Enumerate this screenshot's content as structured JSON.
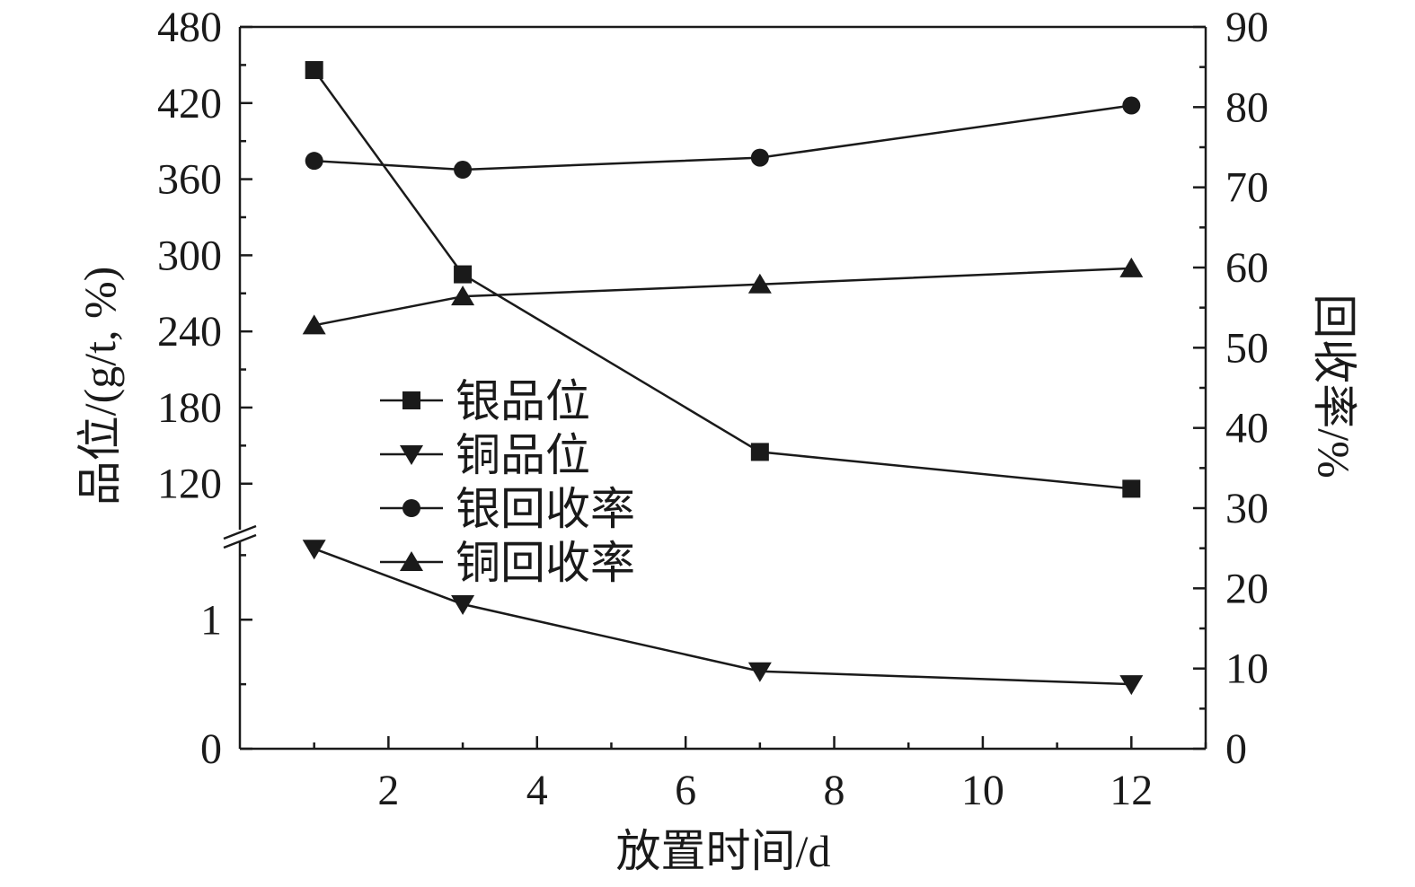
{
  "chart_data": {
    "type": "line",
    "xlabel": "放置时间/d",
    "ylabel_left": "品位/(g/t, %)",
    "ylabel_right": "回收率/%",
    "x_ticks": [
      "2",
      "4",
      "6",
      "8",
      "10",
      "12"
    ],
    "x_tick_values": [
      2,
      4,
      6,
      8,
      10,
      12
    ],
    "xlim": [
      0,
      13
    ],
    "left_axis": {
      "broken": true,
      "upper_segment": {
        "range": [
          100,
          480
        ],
        "ticks": [
          "120",
          "180",
          "240",
          "300",
          "360",
          "420",
          "480"
        ],
        "tick_values": [
          120,
          180,
          240,
          300,
          360,
          420,
          480
        ]
      },
      "lower_segment": {
        "range": [
          0,
          1.6
        ],
        "ticks": [
          "0",
          "1"
        ],
        "tick_values": [
          0,
          1
        ]
      }
    },
    "right_axis": {
      "range": [
        0,
        90
      ],
      "ticks": [
        "0",
        "10",
        "20",
        "30",
        "40",
        "50",
        "60",
        "70",
        "80",
        "90"
      ],
      "tick_values": [
        0,
        10,
        20,
        30,
        40,
        50,
        60,
        70,
        80,
        90
      ]
    },
    "legend_position": "center-left",
    "series": [
      {
        "name": "银品位",
        "axis": "left",
        "segment": "upper",
        "marker": "square",
        "x": [
          1,
          3,
          7,
          12
        ],
        "y": [
          446,
          285,
          145,
          116
        ]
      },
      {
        "name": "铜品位",
        "axis": "left",
        "segment": "lower",
        "marker": "triangle-down",
        "x": [
          1,
          3,
          7,
          12
        ],
        "y": [
          1.55,
          1.12,
          0.6,
          0.5
        ]
      },
      {
        "name": "银回收率",
        "axis": "right",
        "marker": "circle",
        "x": [
          1,
          3,
          7,
          12
        ],
        "y": [
          73.3,
          72.2,
          73.7,
          80.2
        ]
      },
      {
        "name": "铜回收率",
        "axis": "right",
        "marker": "triangle-up",
        "x": [
          1,
          3,
          7,
          12
        ],
        "y": [
          52.8,
          56.4,
          57.9,
          59.9
        ]
      }
    ]
  }
}
